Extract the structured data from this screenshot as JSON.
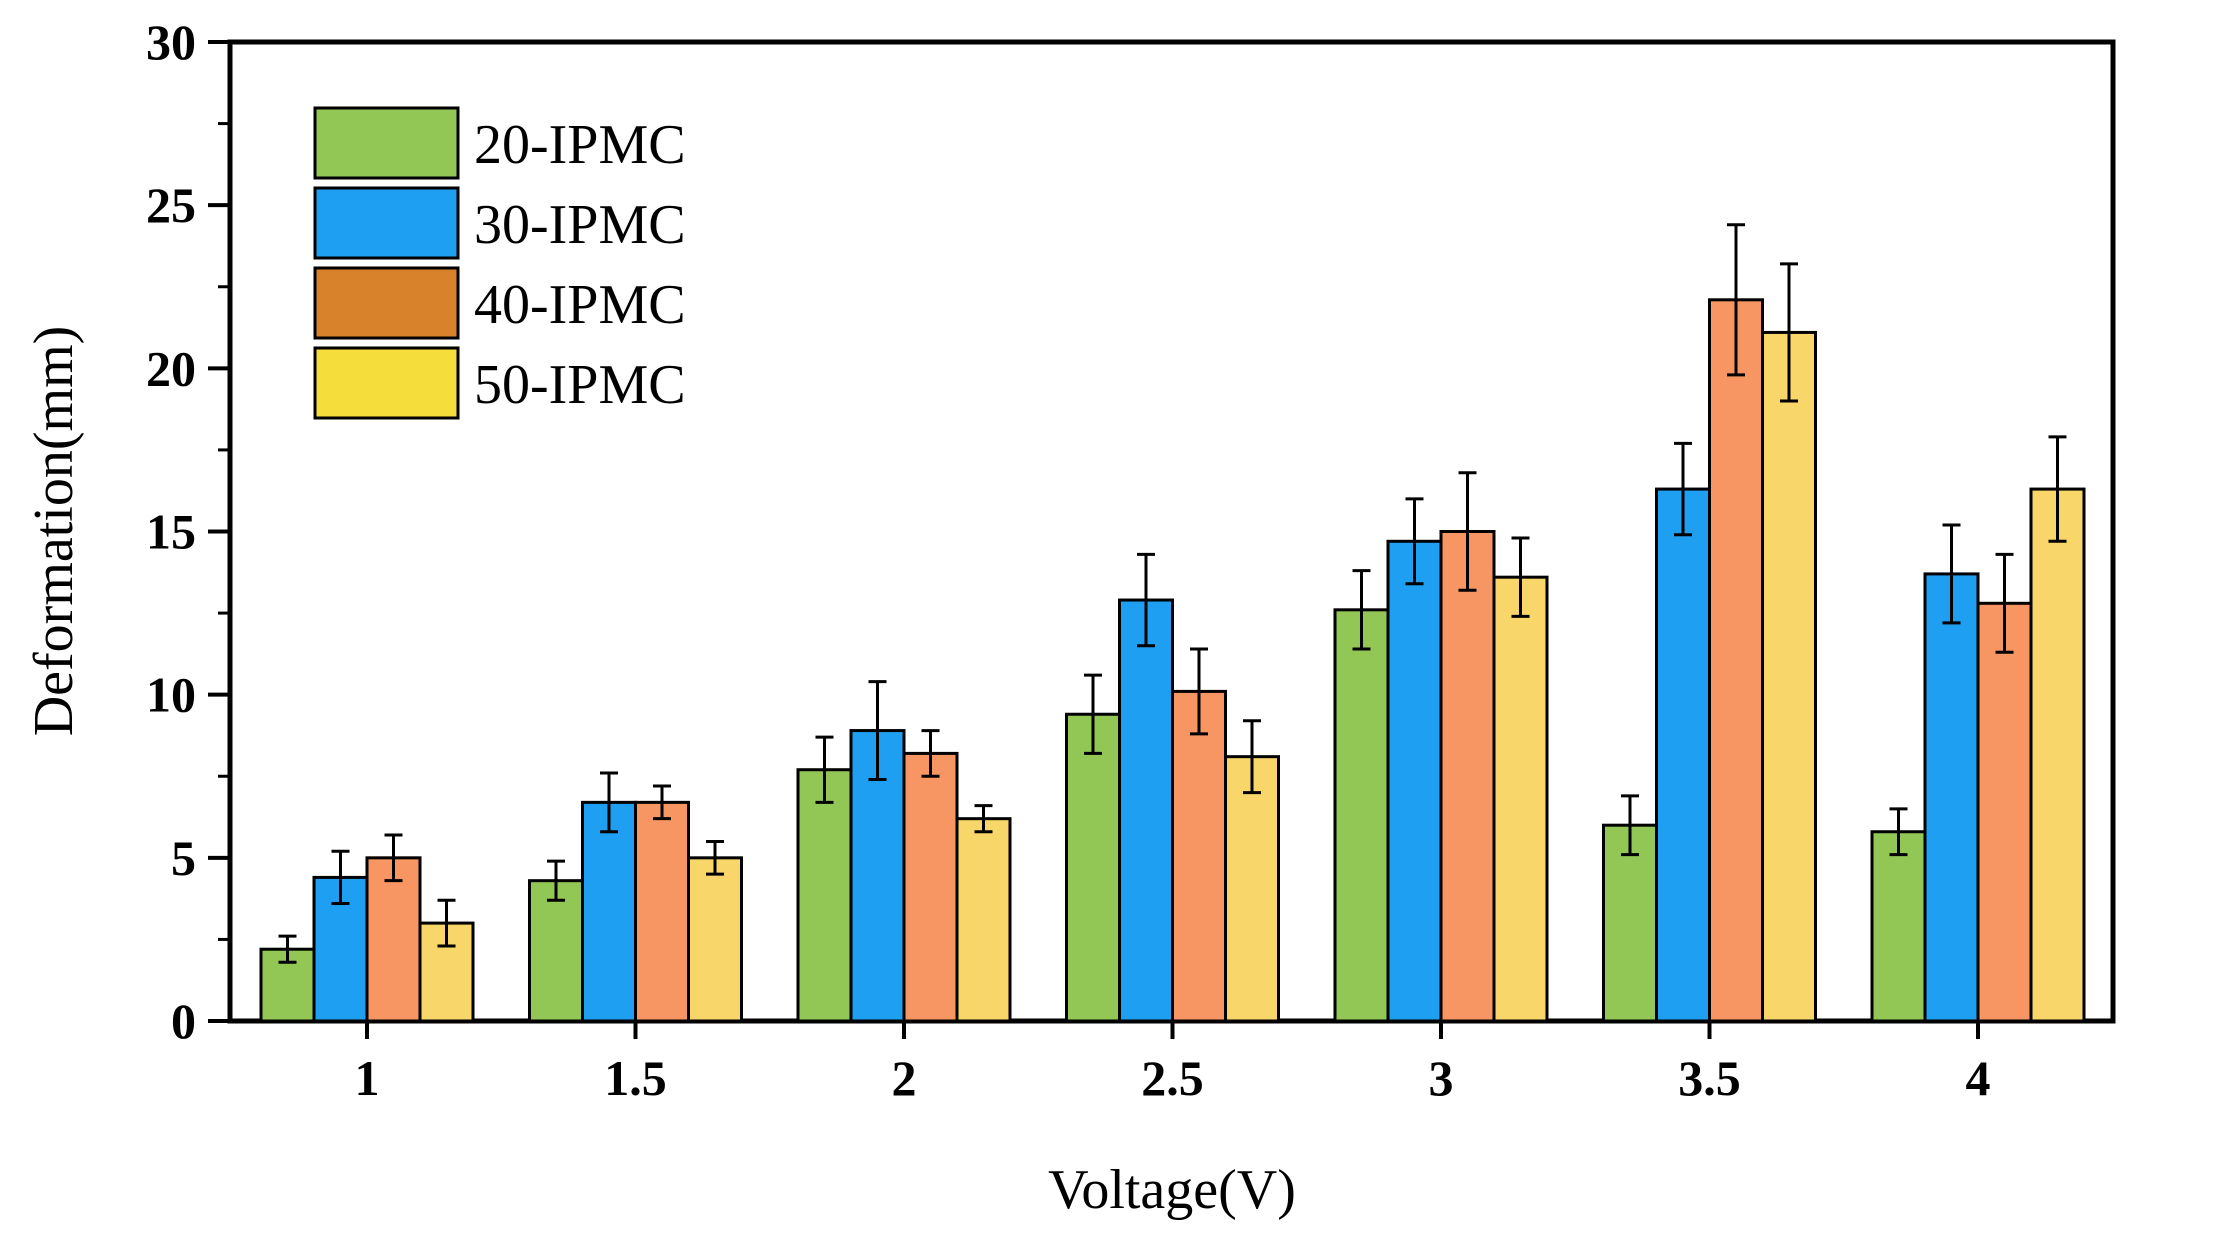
{
  "chart_data": {
    "type": "bar",
    "title": "",
    "xlabel": "Voltage(V)",
    "ylabel": "Deformation(mm)",
    "categories": [
      "1",
      "1.5",
      "2",
      "2.5",
      "3",
      "3.5",
      "4"
    ],
    "ylim": [
      0,
      30
    ],
    "yticks": [
      "0",
      "5",
      "10",
      "15",
      "20",
      "25",
      "30"
    ],
    "legend_position": "top-left",
    "series": [
      {
        "name": "20-IPMC",
        "color": "#92c756",
        "values": [
          2.2,
          4.3,
          7.7,
          9.4,
          12.6,
          6.0,
          5.8
        ],
        "errors": [
          0.4,
          0.6,
          1.0,
          1.2,
          1.2,
          0.9,
          0.7
        ]
      },
      {
        "name": "30-IPMC",
        "color": "#1e9ff2",
        "values": [
          4.4,
          6.7,
          8.9,
          12.9,
          14.7,
          16.3,
          13.7
        ],
        "errors": [
          0.8,
          0.9,
          1.5,
          1.4,
          1.3,
          1.4,
          1.5
        ]
      },
      {
        "name": "40-IPMC",
        "color": "#f79663",
        "values": [
          5.0,
          6.7,
          8.2,
          10.1,
          15.0,
          22.1,
          12.8
        ],
        "errors": [
          0.7,
          0.5,
          0.7,
          1.3,
          1.8,
          2.3,
          1.5
        ]
      },
      {
        "name": "50-IPMC",
        "color": "#f8d66a",
        "values": [
          3.0,
          5.0,
          6.2,
          8.1,
          13.6,
          21.1,
          16.3
        ],
        "errors": [
          0.7,
          0.5,
          0.4,
          1.1,
          1.2,
          2.1,
          1.6
        ]
      }
    ],
    "legend_colors": [
      "#92c756",
      "#1e9ff2",
      "#d9822c",
      "#f5dd3c"
    ]
  }
}
